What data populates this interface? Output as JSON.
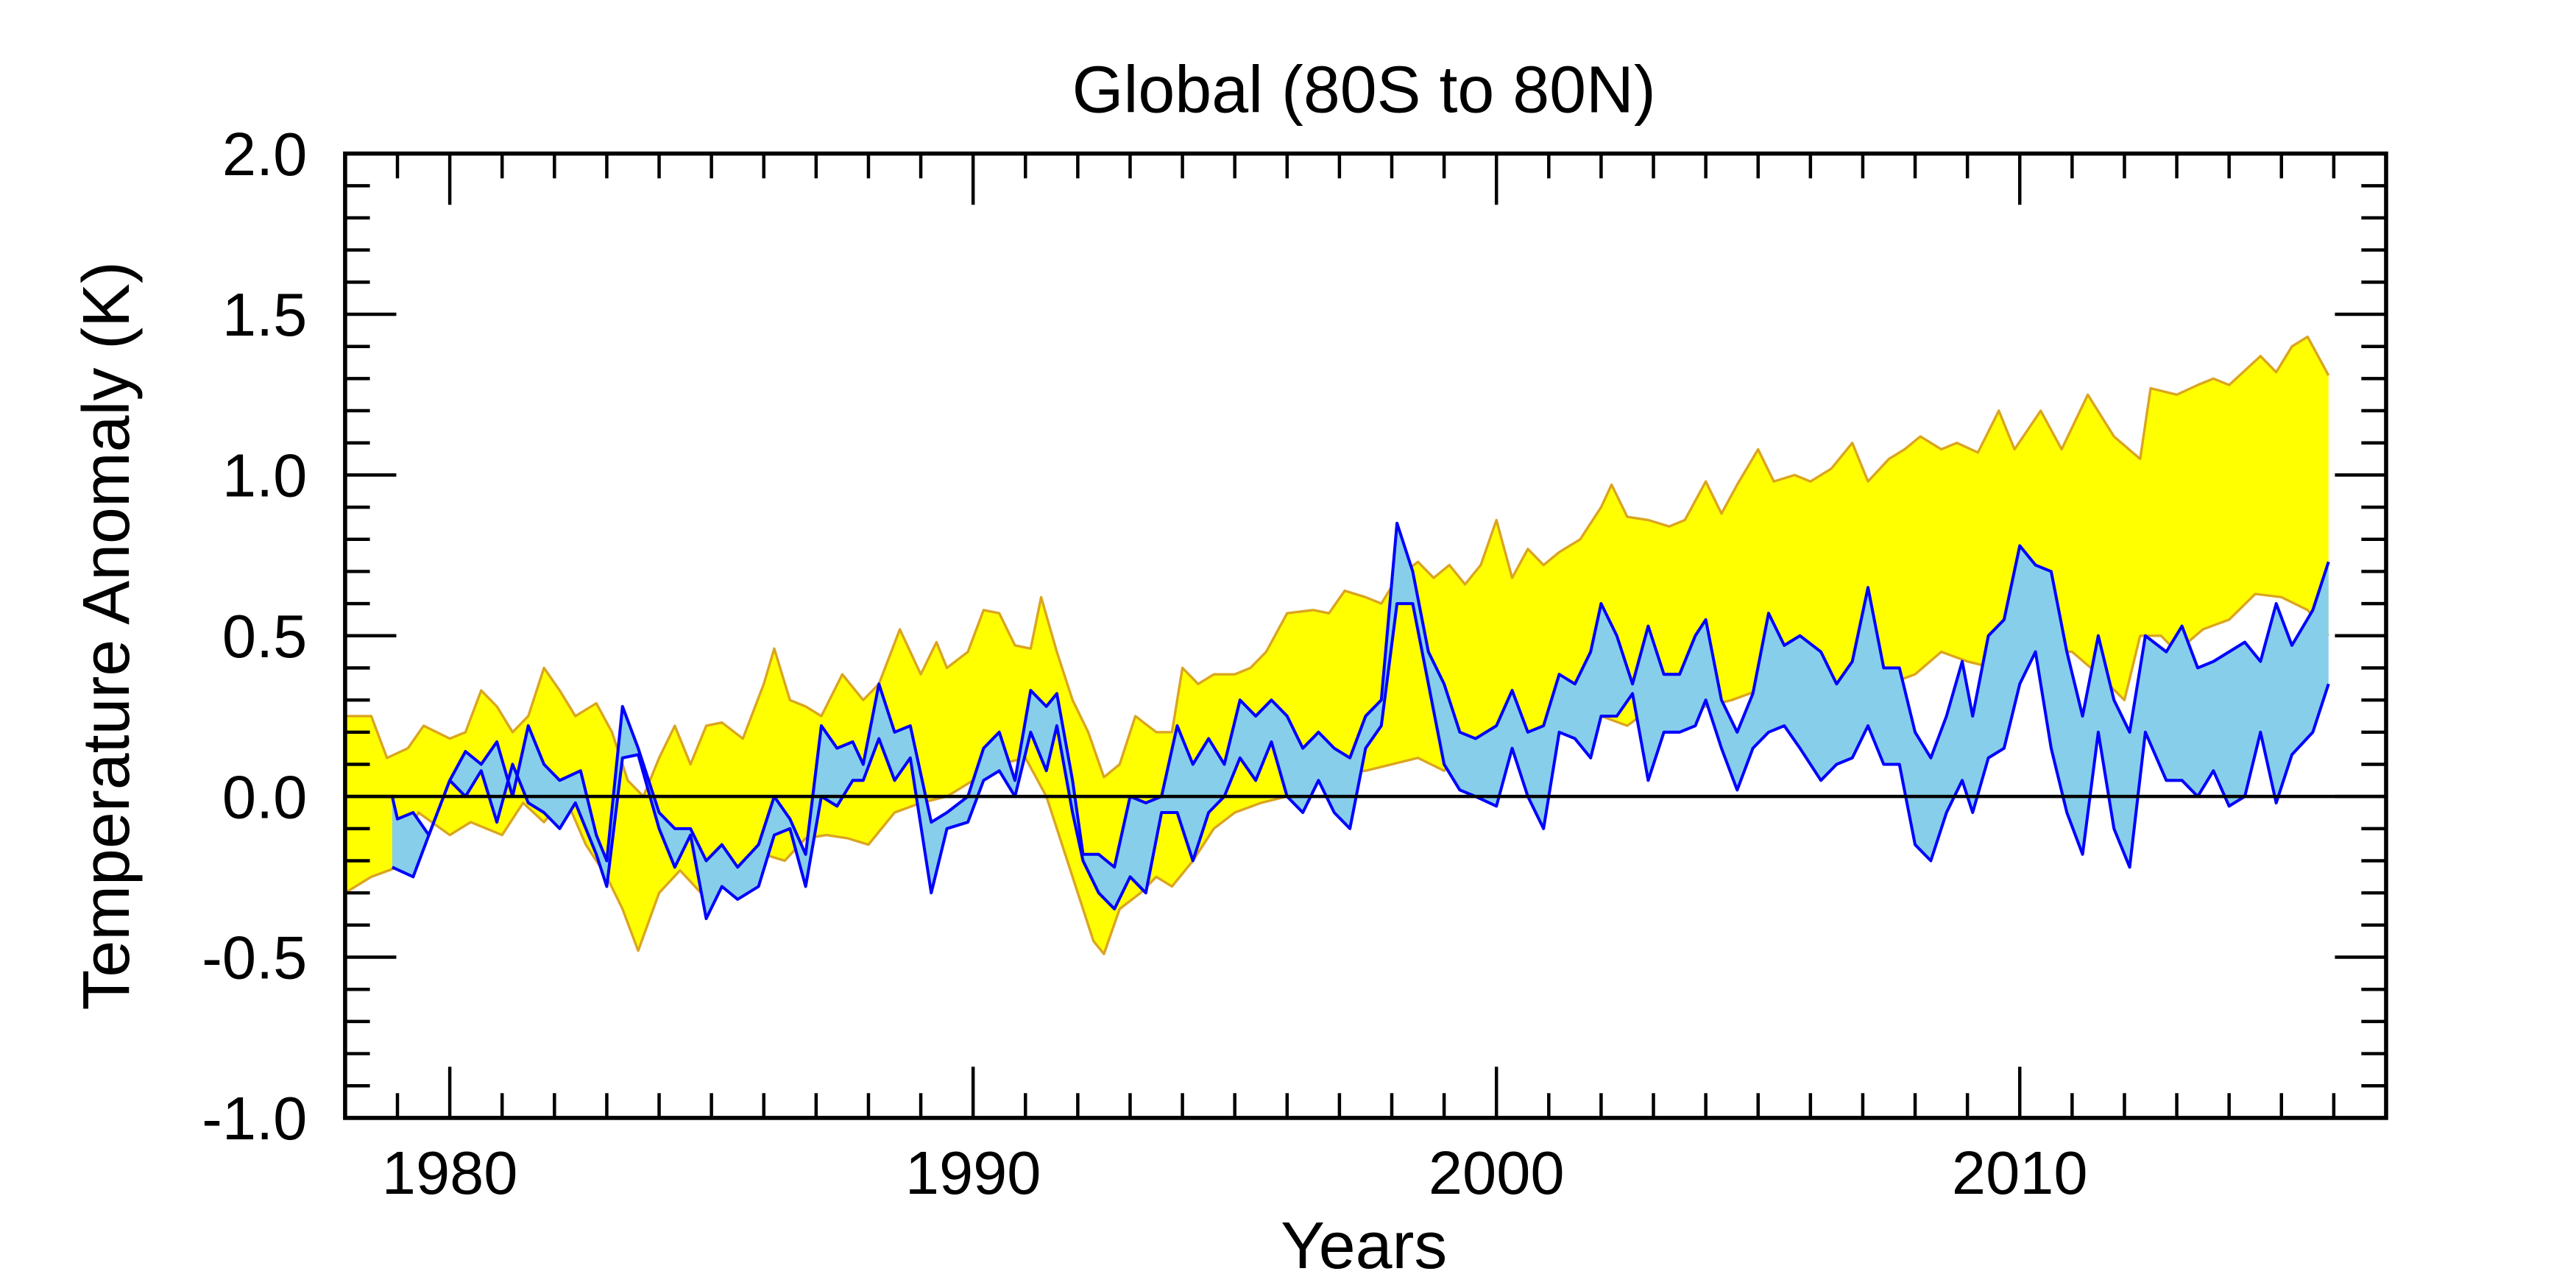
{
  "chart_data": {
    "type": "area",
    "title": "Global (80S to 80N)",
    "xlabel": "Years",
    "ylabel": "Temperature Anomaly (K)",
    "xlim": [
      1978.0,
      2017.0
    ],
    "ylim": [
      -1.0,
      2.0
    ],
    "x_ticks": [
      1980,
      1990,
      2000,
      2010
    ],
    "x_tick_labels": [
      "1980",
      "1990",
      "2000",
      "2010"
    ],
    "y_ticks": [
      -1.0,
      -0.5,
      0.0,
      0.5,
      1.0,
      1.5,
      2.0
    ],
    "y_tick_labels": [
      "-1.0",
      "-0.5",
      "0.0",
      "0.5",
      "1.0",
      "1.5",
      "2.0"
    ],
    "zero_line": true,
    "grid": false,
    "colors": {
      "band1_fill": "#ffff00",
      "band1_edge": "#daa520",
      "band2_fill": "#87ceeb",
      "band2_edge": "#0000ff",
      "zero_line": "#000000"
    },
    "bands": [
      {
        "fill": "#ffff00",
        "edge": "#daa520",
        "upper": {
          "x": [
            1978.0,
            1978.5,
            1978.8,
            1979.2,
            1979.5,
            1980.0,
            1980.3,
            1980.6,
            1980.9,
            1981.2,
            1981.5,
            1981.8,
            1982.1,
            1982.4,
            1982.8,
            1983.1,
            1983.4,
            1983.7,
            1984.0,
            1984.3,
            1984.6,
            1984.9,
            1985.2,
            1985.6,
            1986.0,
            1986.2,
            1986.5,
            1986.8,
            1987.1,
            1987.5,
            1987.9,
            1988.2,
            1988.6,
            1989.0,
            1989.3,
            1989.5,
            1989.9,
            1990.2,
            1990.5,
            1990.8,
            1991.1,
            1991.3,
            1991.6,
            1991.9,
            1992.2,
            1992.5,
            1992.8,
            1993.1,
            1993.5,
            1993.8,
            1994.0,
            1994.3,
            1994.6,
            1995.0,
            1995.3,
            1995.6,
            1996.0,
            1996.5,
            1996.8,
            1997.1,
            1997.5,
            1997.8,
            1998.1,
            1998.5,
            1998.8,
            1999.1,
            1999.4,
            1999.7,
            2000.0,
            2000.3,
            2000.6,
            2000.9,
            2001.2,
            2001.6,
            2002.0,
            2002.2,
            2002.5,
            2002.9,
            2003.3,
            2003.6,
            2004.0,
            2004.3,
            2004.6,
            2005.0,
            2005.3,
            2005.7,
            2006.0,
            2006.4,
            2006.8,
            2007.1,
            2007.5,
            2007.8,
            2008.1,
            2008.5,
            2008.8,
            2009.2,
            2009.6,
            2009.9,
            2010.4,
            2010.8,
            2011.3,
            2011.8,
            2012.3,
            2012.5,
            2013.0,
            2013.4,
            2013.7,
            2014.0,
            2014.6,
            2014.9,
            2015.2,
            2015.5,
            2015.9
          ],
          "y": [
            0.25,
            0.25,
            0.12,
            0.15,
            0.22,
            0.18,
            0.2,
            0.33,
            0.28,
            0.2,
            0.25,
            0.4,
            0.33,
            0.25,
            0.29,
            0.2,
            0.05,
            0.0,
            0.12,
            0.22,
            0.1,
            0.22,
            0.23,
            0.18,
            0.35,
            0.46,
            0.3,
            0.28,
            0.25,
            0.38,
            0.3,
            0.35,
            0.52,
            0.38,
            0.48,
            0.4,
            0.45,
            0.58,
            0.57,
            0.47,
            0.46,
            0.62,
            0.45,
            0.3,
            0.2,
            0.06,
            0.1,
            0.25,
            0.2,
            0.2,
            0.4,
            0.35,
            0.38,
            0.38,
            0.4,
            0.45,
            0.57,
            0.58,
            0.57,
            0.64,
            0.62,
            0.6,
            0.68,
            0.73,
            0.68,
            0.72,
            0.66,
            0.72,
            0.86,
            0.68,
            0.77,
            0.72,
            0.76,
            0.8,
            0.9,
            0.97,
            0.87,
            0.86,
            0.84,
            0.86,
            0.98,
            0.88,
            0.97,
            1.08,
            0.98,
            1.0,
            0.98,
            1.02,
            1.1,
            0.98,
            1.05,
            1.08,
            1.12,
            1.08,
            1.1,
            1.07,
            1.2,
            1.08,
            1.2,
            1.08,
            1.25,
            1.12,
            1.05,
            1.27,
            1.25,
            1.28,
            1.3,
            1.28,
            1.37,
            1.32,
            1.4,
            1.43,
            1.31
          ]
        },
        "lower": {
          "x": [
            1978.0,
            1978.5,
            1979.0,
            1979.4,
            1980.0,
            1980.4,
            1981.0,
            1981.4,
            1981.8,
            1982.2,
            1982.6,
            1983.0,
            1983.3,
            1983.6,
            1984.0,
            1984.4,
            1984.8,
            1985.2,
            1985.6,
            1986.0,
            1986.4,
            1986.8,
            1987.2,
            1987.6,
            1988.0,
            1988.5,
            1989.0,
            1989.5,
            1990.0,
            1990.5,
            1991.0,
            1991.4,
            1991.7,
            1992.0,
            1992.3,
            1992.5,
            1992.8,
            1993.2,
            1993.5,
            1993.8,
            1994.2,
            1994.6,
            1995.0,
            1995.5,
            1996.0,
            1996.5,
            1997.0,
            1997.5,
            1998.0,
            1998.5,
            1999.0,
            1999.5,
            2000.0,
            2000.5,
            2001.0,
            2001.5,
            2002.0,
            2002.5,
            2003.0,
            2003.5,
            2004.0,
            2004.5,
            2005.0,
            2005.5,
            2006.0,
            2006.5,
            2007.0,
            2007.5,
            2008.0,
            2008.5,
            2009.0,
            2009.5,
            2010.0,
            2010.5,
            2011.0,
            2011.5,
            2012.0,
            2012.3,
            2012.7,
            2013.0,
            2013.5,
            2014.0,
            2014.5,
            2015.0,
            2015.5,
            2015.9
          ],
          "y": [
            -0.3,
            -0.25,
            -0.22,
            -0.05,
            -0.12,
            -0.08,
            -0.12,
            -0.02,
            -0.08,
            0.0,
            -0.15,
            -0.25,
            -0.35,
            -0.48,
            -0.3,
            -0.23,
            -0.3,
            -0.22,
            -0.25,
            -0.18,
            -0.2,
            -0.13,
            -0.12,
            -0.13,
            -0.15,
            -0.05,
            -0.02,
            0.0,
            0.05,
            0.1,
            0.12,
            0.0,
            -0.15,
            -0.3,
            -0.45,
            -0.49,
            -0.35,
            -0.3,
            -0.25,
            -0.28,
            -0.2,
            -0.1,
            -0.05,
            -0.02,
            0.0,
            0.05,
            0.07,
            0.08,
            0.1,
            0.12,
            0.08,
            0.15,
            0.18,
            0.15,
            0.2,
            0.25,
            0.25,
            0.22,
            0.28,
            0.25,
            0.28,
            0.3,
            0.33,
            0.35,
            0.35,
            0.3,
            0.38,
            0.35,
            0.38,
            0.45,
            0.42,
            0.4,
            0.48,
            0.45,
            0.45,
            0.38,
            0.3,
            0.5,
            0.5,
            0.45,
            0.52,
            0.55,
            0.63,
            0.62,
            0.58,
            0.5
          ]
        }
      },
      {
        "fill": "#87ceeb",
        "edge": "#0000ff",
        "upper": {
          "x": [
            1978.9,
            1979.0,
            1979.3,
            1979.6,
            1980.0,
            1980.3,
            1980.6,
            1980.9,
            1981.2,
            1981.5,
            1981.8,
            1982.1,
            1982.5,
            1982.8,
            1983.0,
            1983.3,
            1983.6,
            1984.0,
            1984.3,
            1984.6,
            1984.9,
            1985.2,
            1985.5,
            1985.9,
            1986.2,
            1986.5,
            1986.8,
            1987.1,
            1987.4,
            1987.7,
            1987.9,
            1988.2,
            1988.5,
            1988.8,
            1989.2,
            1989.5,
            1989.9,
            1990.2,
            1990.5,
            1990.8,
            1991.1,
            1991.4,
            1991.6,
            1991.9,
            1992.1,
            1992.4,
            1992.7,
            1993.0,
            1993.3,
            1993.6,
            1993.9,
            1994.2,
            1994.5,
            1994.8,
            1995.1,
            1995.4,
            1995.7,
            1996.0,
            1996.3,
            1996.6,
            1996.9,
            1997.2,
            1997.5,
            1997.8,
            1998.1,
            1998.4,
            1998.7,
            1999.0,
            1999.3,
            1999.6,
            2000.0,
            2000.3,
            2000.6,
            2000.9,
            2001.2,
            2001.5,
            2001.8,
            2002.0,
            2002.3,
            2002.6,
            2002.9,
            2003.2,
            2003.5,
            2003.8,
            2004.0,
            2004.3,
            2004.6,
            2004.9,
            2005.2,
            2005.5,
            2005.8,
            2006.2,
            2006.5,
            2006.8,
            2007.1,
            2007.4,
            2007.7,
            2008.0,
            2008.3,
            2008.6,
            2008.9,
            2009.1,
            2009.4,
            2009.7,
            2010.0,
            2010.3,
            2010.6,
            2010.9,
            2011.2,
            2011.5,
            2011.8,
            2012.1,
            2012.4,
            2012.8,
            2013.1,
            2013.4,
            2013.7,
            2014.0,
            2014.3,
            2014.6,
            2014.9,
            2015.2,
            2015.6,
            2015.9
          ],
          "y": [
            0.0,
            -0.07,
            -0.05,
            -0.12,
            0.05,
            0.14,
            0.1,
            0.17,
            0.0,
            0.22,
            0.1,
            0.05,
            0.08,
            -0.12,
            -0.2,
            0.28,
            0.15,
            -0.05,
            -0.1,
            -0.1,
            -0.2,
            -0.15,
            -0.22,
            -0.15,
            0.0,
            -0.07,
            -0.18,
            0.22,
            0.15,
            0.17,
            0.1,
            0.35,
            0.2,
            0.22,
            -0.08,
            -0.05,
            0.0,
            0.15,
            0.2,
            0.05,
            0.33,
            0.28,
            0.32,
            0.05,
            -0.18,
            -0.18,
            -0.22,
            0.0,
            -0.02,
            0.0,
            0.22,
            0.1,
            0.18,
            0.1,
            0.3,
            0.25,
            0.3,
            0.25,
            0.15,
            0.2,
            0.15,
            0.12,
            0.25,
            0.3,
            0.85,
            0.7,
            0.45,
            0.35,
            0.2,
            0.18,
            0.22,
            0.33,
            0.2,
            0.22,
            0.38,
            0.35,
            0.45,
            0.6,
            0.5,
            0.35,
            0.53,
            0.38,
            0.38,
            0.5,
            0.55,
            0.3,
            0.2,
            0.32,
            0.57,
            0.47,
            0.5,
            0.45,
            0.35,
            0.42,
            0.65,
            0.4,
            0.4,
            0.2,
            0.12,
            0.25,
            0.42,
            0.25,
            0.5,
            0.55,
            0.78,
            0.72,
            0.7,
            0.45,
            0.25,
            0.5,
            0.3,
            0.2,
            0.5,
            0.45,
            0.53,
            0.4,
            0.42,
            0.45,
            0.48,
            0.42,
            0.6,
            0.47,
            0.58,
            0.73
          ]
        },
        "lower": {
          "x": [
            1978.9,
            1979.3,
            1979.6,
            1980.0,
            1980.3,
            1980.6,
            1980.9,
            1981.2,
            1981.5,
            1981.8,
            1982.1,
            1982.4,
            1982.8,
            1983.0,
            1983.3,
            1983.6,
            1984.0,
            1984.3,
            1984.6,
            1984.9,
            1985.2,
            1985.5,
            1985.9,
            1986.2,
            1986.5,
            1986.8,
            1987.1,
            1987.4,
            1987.7,
            1987.9,
            1988.2,
            1988.5,
            1988.8,
            1989.2,
            1989.5,
            1989.9,
            1990.2,
            1990.5,
            1990.8,
            1991.1,
            1991.4,
            1991.6,
            1991.9,
            1992.1,
            1992.4,
            1992.7,
            1993.0,
            1993.3,
            1993.6,
            1993.9,
            1994.2,
            1994.5,
            1994.8,
            1995.1,
            1995.4,
            1995.7,
            1996.0,
            1996.3,
            1996.6,
            1996.9,
            1997.2,
            1997.5,
            1997.8,
            1998.1,
            1998.4,
            1998.7,
            1999.0,
            1999.3,
            1999.6,
            2000.0,
            2000.3,
            2000.6,
            2000.9,
            2001.2,
            2001.5,
            2001.8,
            2002.0,
            2002.3,
            2002.6,
            2002.9,
            2003.2,
            2003.5,
            2003.8,
            2004.0,
            2004.3,
            2004.6,
            2004.9,
            2005.2,
            2005.5,
            2005.8,
            2006.2,
            2006.5,
            2006.8,
            2007.1,
            2007.4,
            2007.7,
            2008.0,
            2008.3,
            2008.6,
            2008.9,
            2009.1,
            2009.4,
            2009.7,
            2010.0,
            2010.3,
            2010.6,
            2010.9,
            2011.2,
            2011.5,
            2011.8,
            2012.1,
            2012.4,
            2012.8,
            2013.1,
            2013.4,
            2013.7,
            2014.0,
            2014.3,
            2014.6,
            2014.9,
            2015.2,
            2015.6,
            2015.9
          ],
          "y": [
            -0.22,
            -0.25,
            -0.12,
            0.05,
            0.0,
            0.08,
            -0.08,
            0.1,
            -0.02,
            -0.05,
            -0.1,
            -0.02,
            -0.18,
            -0.28,
            0.12,
            0.13,
            -0.1,
            -0.22,
            -0.12,
            -0.38,
            -0.28,
            -0.32,
            -0.28,
            -0.12,
            -0.1,
            -0.28,
            0.0,
            -0.03,
            0.05,
            0.05,
            0.18,
            0.05,
            0.12,
            -0.3,
            -0.1,
            -0.08,
            0.05,
            0.08,
            0.0,
            0.2,
            0.08,
            0.22,
            -0.05,
            -0.2,
            -0.3,
            -0.35,
            -0.25,
            -0.3,
            -0.05,
            -0.05,
            -0.2,
            -0.05,
            0.0,
            0.12,
            0.05,
            0.17,
            0.0,
            -0.05,
            0.05,
            -0.05,
            -0.1,
            0.15,
            0.22,
            0.6,
            0.6,
            0.35,
            0.1,
            0.02,
            0.0,
            -0.03,
            0.15,
            0.0,
            -0.1,
            0.2,
            0.18,
            0.12,
            0.25,
            0.25,
            0.32,
            0.05,
            0.2,
            0.2,
            0.22,
            0.3,
            0.15,
            0.02,
            0.15,
            0.2,
            0.22,
            0.15,
            0.05,
            0.1,
            0.12,
            0.22,
            0.1,
            0.1,
            -0.15,
            -0.2,
            -0.05,
            0.05,
            -0.05,
            0.12,
            0.15,
            0.35,
            0.45,
            0.15,
            -0.05,
            -0.18,
            0.2,
            -0.1,
            -0.22,
            0.2,
            0.05,
            0.05,
            0.0,
            0.08,
            -0.03,
            0.0,
            0.2,
            -0.02,
            0.13,
            0.2,
            0.35
          ]
        }
      }
    ]
  }
}
